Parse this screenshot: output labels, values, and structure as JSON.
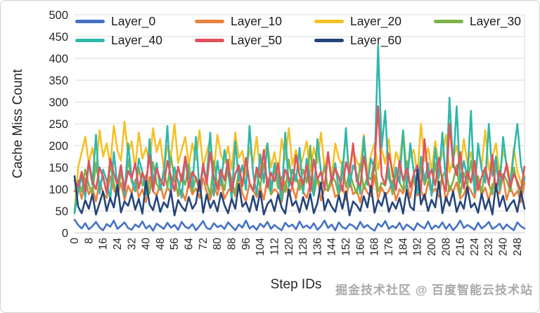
{
  "watermark": {
    "text": "掘金技术社区 @ 百度智能云技术站",
    "color": "#a9a9a9"
  },
  "chart_data": {
    "type": "line",
    "title": "",
    "xlabel": "Step IDs",
    "ylabel": "Cache Miss Count",
    "ylim": [
      0,
      500
    ],
    "ytick_step": 50,
    "ytick_labels": [
      0,
      50,
      100,
      150,
      200,
      250,
      300,
      350,
      400,
      450,
      500
    ],
    "x_start": 0,
    "x_step": 2,
    "x_max": 252,
    "xtick_interval": 8,
    "xtick_labels": [
      0,
      8,
      16,
      24,
      32,
      40,
      48,
      56,
      64,
      72,
      80,
      88,
      96,
      104,
      112,
      120,
      128,
      136,
      144,
      152,
      160,
      168,
      176,
      184,
      192,
      200,
      208,
      216,
      224,
      232,
      240,
      248
    ],
    "grid": "horizontal",
    "grid_color": "#dadada",
    "legend_position": "top-left-two-rows",
    "series": [
      {
        "name": "Layer_0",
        "color": "#4472C4",
        "values": [
          30,
          18,
          10,
          22,
          8,
          15,
          25,
          12,
          6,
          20,
          14,
          28,
          9,
          16,
          24,
          11,
          7,
          19,
          13,
          26,
          10,
          17,
          5,
          21,
          15,
          9,
          23,
          12,
          18,
          7,
          25,
          14,
          10,
          20,
          6,
          16,
          27,
          11,
          8,
          22,
          13,
          17,
          9,
          24,
          15,
          6,
          19,
          12,
          28,
          10,
          16,
          7,
          21,
          13,
          25,
          9,
          18,
          11,
          6,
          23,
          14,
          19,
          8,
          26,
          12,
          17,
          10,
          22,
          7,
          15,
          28,
          11,
          19,
          6,
          24,
          13,
          9,
          20,
          16,
          8,
          25,
          12,
          18,
          10,
          5,
          21,
          14,
          27,
          9,
          16,
          11,
          23,
          7,
          19,
          13,
          6,
          22,
          15,
          10,
          26,
          8,
          17,
          12,
          24,
          9,
          20,
          6,
          15,
          28,
          11,
          18,
          13,
          7,
          23,
          10,
          16,
          25,
          9,
          14,
          21,
          8,
          19,
          12,
          6,
          24,
          15,
          10
        ]
      },
      {
        "name": "Layer_10",
        "color": "#EC813B",
        "values": [
          95,
          110,
          78,
          125,
          88,
          105,
          72,
          118,
          92,
          80,
          130,
          98,
          85,
          115,
          75,
          108,
          90,
          122,
          82,
          100,
          70,
          128,
          95,
          86,
          112,
          78,
          104,
          92,
          135,
          84,
          98,
          74,
          116,
          88,
          102,
          80,
          125,
          94,
          76,
          110,
          86,
          120,
          78,
          96,
          108,
          84,
          130,
          90,
          72,
          114,
          98,
          82,
          105,
          76,
          126,
          88,
          100,
          92,
          70,
          118,
          84,
          106,
          78,
          122,
          94,
          80,
          112,
          86,
          128,
          74,
          102,
          96,
          116,
          82,
          90,
          108,
          76,
          124,
          88,
          98,
          70,
          110,
          92,
          84,
          132,
          78,
          104,
          86,
          96,
          120,
          74,
          100,
          90,
          114,
          80,
          126,
          85,
          98,
          76,
          118,
          90,
          102,
          82,
          128,
          72,
          108,
          94,
          116,
          78,
          88,
          110,
          96,
          80,
          122,
          86,
          104,
          74,
          112,
          98,
          90,
          130,
          76,
          106,
          84,
          96,
          70,
          115
        ]
      },
      {
        "name": "Layer_20",
        "color": "#F5C026",
        "values": [
          45,
          150,
          185,
          220,
          160,
          195,
          140,
          235,
          175,
          205,
          155,
          245,
          190,
          165,
          255,
          180,
          210,
          148,
          230,
          170,
          195,
          158,
          240,
          185,
          215,
          145,
          200,
          175,
          250,
          160,
          190,
          220,
          155,
          205,
          168,
          235,
          150,
          185,
          215,
          142,
          225,
          178,
          160,
          198,
          145,
          230,
          172,
          188,
          130,
          195,
          158,
          220,
          140,
          178,
          205,
          150,
          185,
          132,
          215,
          168,
          240,
          155,
          190,
          145,
          175,
          210,
          138,
          195,
          160,
          230,
          148,
          182,
          125,
          205,
          170,
          155,
          218,
          140,
          188,
          164,
          150,
          225,
          135,
          178,
          205,
          145,
          192,
          158,
          215,
          128,
          185,
          162,
          235,
          148,
          175,
          190,
          132,
          250,
          165,
          195,
          142,
          210,
          155,
          180,
          225,
          138,
          168,
          200,
          146,
          215,
          158,
          185,
          128,
          190,
          152,
          235,
          144,
          175,
          205,
          135,
          188,
          160,
          120,
          195,
          142,
          115,
          130
        ]
      },
      {
        "name": "Layer_30",
        "color": "#7CB348",
        "values": [
          50,
          120,
          95,
          145,
          110,
          88,
          160,
          105,
          130,
          92,
          155,
          115,
          85,
          140,
          100,
          168,
          118,
          96,
          150,
          108,
          132,
          90,
          162,
          112,
          98,
          145,
          104,
          175,
          122,
          88,
          135,
          110,
          158,
          95,
          128,
          102,
          148,
          116,
          86,
          165,
          108,
          130,
          98,
          155,
          120,
          90,
          142,
          106,
          172,
          112,
          96,
          138,
          104,
          160,
          118,
          88,
          150,
          102,
          128,
          94,
          168,
          110,
          135,
          98,
          145,
          115,
          200,
          92,
          125,
          108,
          155,
          96,
          132,
          118,
          85,
          162,
          104,
          140,
          112,
          90,
          158,
          100,
          130,
          122,
          170,
          94,
          115,
          108,
          148,
          88,
          136,
          116,
          98,
          165,
          105,
          125,
          95,
          152,
          110,
          135,
          90,
          160,
          102,
          128,
          145,
          96,
          118,
          155,
          86,
          138,
          108,
          165,
          100,
          130,
          92,
          148,
          112,
          88,
          158,
          104,
          135,
          120,
          95,
          150,
          110,
          85,
          128
        ]
      },
      {
        "name": "Layer_40",
        "color": "#2FB8AB",
        "values": [
          45,
          95,
          130,
          80,
          160,
          110,
          225,
          90,
          145,
          120,
          75,
          185,
          105,
          155,
          85,
          205,
          125,
          95,
          170,
          140,
          88,
          215,
          115,
          160,
          100,
          135,
          245,
          92,
          150,
          118,
          80,
          175,
          130,
          105,
          220,
          95,
          148,
          125,
          230,
          85,
          165,
          110,
          190,
          140,
          78,
          210,
          120,
          155,
          98,
          245,
          135,
          88,
          180,
          115,
          205,
          96,
          160,
          128,
          75,
          230,
          105,
          145,
          118,
          195,
          90,
          170,
          125,
          85,
          215,
          140,
          100,
          185,
          115,
          160,
          95,
          130,
          240,
          105,
          155,
          135,
          90,
          220,
          110,
          170,
          145,
          430,
          195,
          280,
          125,
          100,
          150,
          115,
          235,
          100,
          205,
          140,
          90,
          175,
          120,
          160,
          85,
          195,
          125,
          230,
          110,
          310,
          150,
          290,
          115,
          165,
          125,
          280,
          90,
          205,
          145,
          115,
          250,
          130,
          175,
          98,
          220,
          150,
          110,
          185,
          250,
          155,
          120
        ]
      },
      {
        "name": "Layer_50",
        "color": "#E2525C",
        "values": [
          120,
          105,
          140,
          95,
          165,
          118,
          100,
          150,
          128,
          92,
          170,
          135,
          110,
          155,
          98,
          142,
          125,
          160,
          102,
          138,
          115,
          180,
          95,
          148,
          122,
          108,
          165,
          130,
          96,
          152,
          118,
          175,
          104,
          140,
          125,
          98,
          158,
          112,
          185,
          128,
          100,
          145,
          120,
          168,
          94,
          135,
          155,
          108,
          172,
          115,
          96,
          150,
          126,
          190,
          104,
          138,
          118,
          160,
          98,
          145,
          125,
          105,
          178,
          132,
          110,
          155,
          95,
          168,
          122,
          140,
          100,
          185,
          115,
          148,
          128,
          96,
          162,
          135,
          205,
          118,
          108,
          175,
          124,
          95,
          158,
          290,
          130,
          110,
          182,
          140,
          98,
          165,
          120,
          148,
          104,
          135,
          155,
          100,
          215,
          125,
          145,
          108,
          172,
          118,
          96,
          250,
          160,
          132,
          185,
          102,
          140,
          115,
          165,
          98,
          128,
          150,
          110,
          178,
          95,
          142,
          122,
          158,
          104,
          135,
          118,
          96,
          152
        ]
      },
      {
        "name": "Layer_60",
        "color": "#25457A",
        "values": [
          130,
          60,
          45,
          75,
          55,
          88,
          42,
          68,
          95,
          50,
          80,
          58,
          110,
          47,
          72,
          62,
          90,
          53,
          78,
          44,
          118,
          65,
          52,
          85,
          48,
          70,
          58,
          96,
          40,
          75,
          60,
          50,
          82,
          55,
          68,
          120,
          46,
          88,
          57,
          74,
          49,
          92,
          63,
          45,
          78,
          55,
          112,
          60,
          70,
          48,
          85,
          52,
          95,
          42,
          66,
          76,
          50,
          88,
          58,
          44,
          100,
          62,
          73,
          47,
          82,
          54,
          90,
          45,
          68,
          115,
          52,
          77,
          60,
          48,
          86,
          55,
          95,
          40,
          72,
          63,
          50,
          84,
          58,
          108,
          46,
          75,
          62,
          92,
          48,
          70,
          55,
          80,
          44,
          98,
          60,
          52,
          145,
          65,
          88,
          50,
          76,
          58,
          118,
          45,
          82,
          62,
          95,
          48,
          72,
          55,
          105,
          58,
          68,
          46,
          90,
          54,
          78,
          42,
          112,
          60,
          85,
          50,
          65,
          75,
          48,
          95,
          55
        ]
      }
    ]
  }
}
